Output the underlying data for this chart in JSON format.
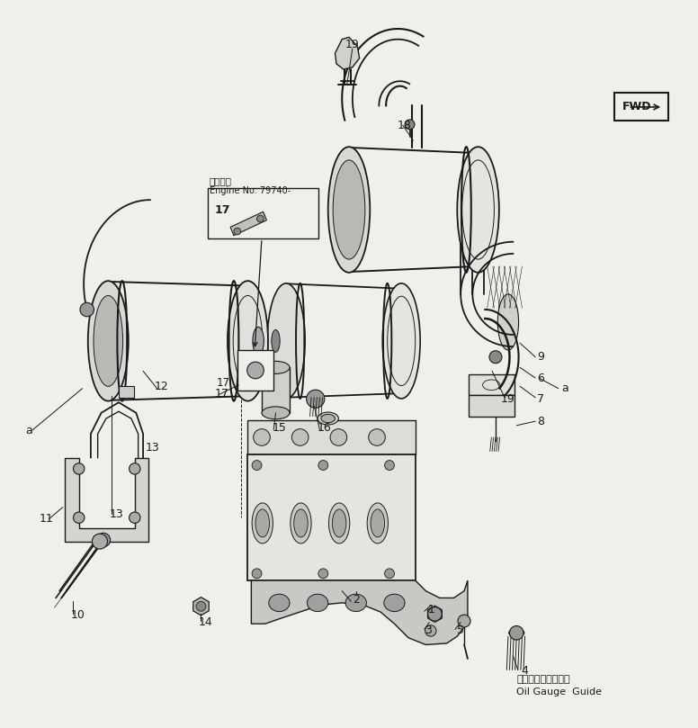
{
  "bg_color": "#f0f0eb",
  "line_color": "#1a1a1a",
  "label_fontsize": 9,
  "line_width": 1.0,
  "annotation_box": {
    "text1": "適用号等",
    "text2": "Engine No. 79740-"
  },
  "fwd_box": {
    "text": "FWD"
  },
  "footer_jp": "オイルゲージガイド",
  "footer_en": "Oil Gauge  Guide"
}
